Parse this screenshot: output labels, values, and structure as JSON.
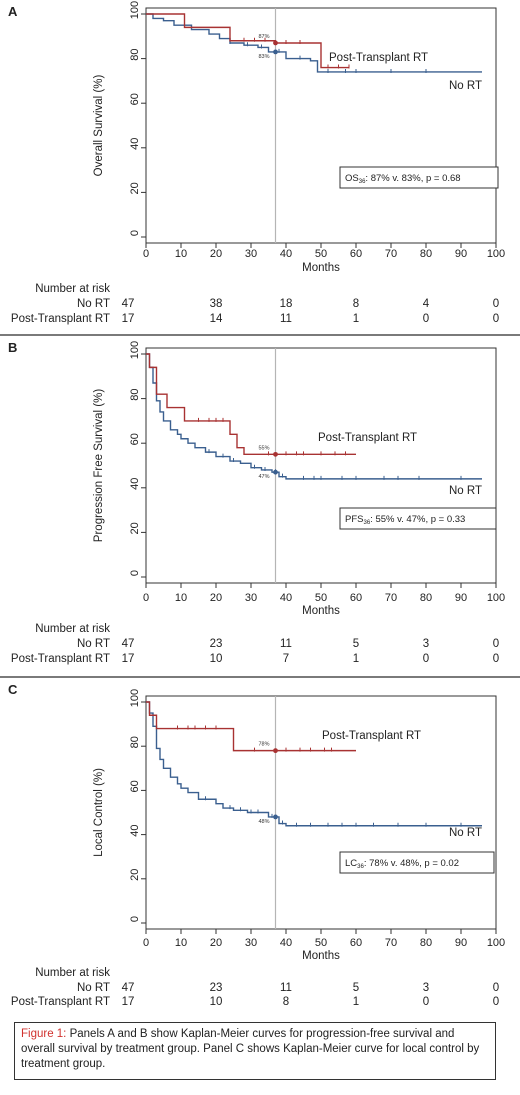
{
  "chart_data": [
    {
      "type": "line",
      "panel_label": "A",
      "ylabel": "Overall Survival (%)",
      "xlabel": "Months",
      "xlim": [
        0,
        100
      ],
      "ylim": [
        0,
        100
      ],
      "xticks": [
        0,
        10,
        20,
        30,
        40,
        50,
        60,
        70,
        80,
        90,
        100
      ],
      "yticks": [
        0,
        20,
        40,
        60,
        80,
        100
      ],
      "reference_line_x": 37,
      "annotation": "OS36: 87% v. 83%, p = 0.68",
      "annotation_parts": {
        "prefix": "OS",
        "sub": "36",
        "rest": ": 87% v. 83%, p = 0.68"
      },
      "series": [
        {
          "name": "No RT",
          "color": "#3a5f8f",
          "steps": [
            [
              0,
              100
            ],
            [
              2,
              98
            ],
            [
              5,
              97
            ],
            [
              8,
              95
            ],
            [
              13,
              93
            ],
            [
              18,
              91
            ],
            [
              21,
              89
            ],
            [
              24,
              87
            ],
            [
              28,
              86
            ],
            [
              32,
              85
            ],
            [
              35,
              83
            ],
            [
              37,
              83
            ],
            [
              40,
              80
            ],
            [
              47,
              79
            ],
            [
              49,
              74
            ],
            [
              96,
              74
            ]
          ],
          "censor": [
            24,
            29,
            33,
            38,
            44,
            52,
            57,
            60,
            70,
            80
          ],
          "marker_x": 37,
          "marker_label": "83%"
        },
        {
          "name": "Post-Transplant RT",
          "color": "#a83232",
          "steps": [
            [
              0,
              100
            ],
            [
              10,
              100
            ],
            [
              11,
              94
            ],
            [
              23,
              94
            ],
            [
              24,
              88
            ],
            [
              37,
              87
            ],
            [
              49,
              87
            ],
            [
              50,
              76
            ],
            [
              58,
              76
            ]
          ],
          "censor": [
            28,
            31,
            34,
            40,
            44,
            52,
            55,
            58
          ],
          "marker_x": 37,
          "marker_label": "87%"
        }
      ],
      "risk_table": {
        "title": "Number at risk",
        "times": [
          0,
          20,
          40,
          60,
          80,
          100
        ],
        "rows": [
          {
            "label": "No RT",
            "counts": [
              "47",
              "38",
              "18",
              "8",
              "4",
              "0"
            ]
          },
          {
            "label": "Post-Transplant RT",
            "counts": [
              "17",
              "14",
              "11",
              "1",
              "0",
              "0"
            ]
          }
        ]
      }
    },
    {
      "type": "line",
      "panel_label": "B",
      "ylabel": "Progression Free Survival (%)",
      "xlabel": "Months",
      "xlim": [
        0,
        100
      ],
      "ylim": [
        0,
        100
      ],
      "xticks": [
        0,
        10,
        20,
        30,
        40,
        50,
        60,
        70,
        80,
        90,
        100
      ],
      "yticks": [
        0,
        20,
        40,
        60,
        80,
        100
      ],
      "reference_line_x": 37,
      "annotation": "PFS36: 55% v. 47%, p = 0.33",
      "annotation_parts": {
        "prefix": "PFS",
        "sub": "36",
        "rest": ": 55% v. 47%, p = 0.33"
      },
      "series": [
        {
          "name": "No RT",
          "color": "#3a5f8f",
          "steps": [
            [
              0,
              100
            ],
            [
              1,
              94
            ],
            [
              2,
              87
            ],
            [
              3,
              79
            ],
            [
              4,
              74
            ],
            [
              5,
              70
            ],
            [
              7,
              66
            ],
            [
              9,
              64
            ],
            [
              10,
              62
            ],
            [
              12,
              60
            ],
            [
              14,
              58
            ],
            [
              17,
              56
            ],
            [
              20,
              54
            ],
            [
              24,
              52
            ],
            [
              27,
              51
            ],
            [
              30,
              49
            ],
            [
              33,
              48
            ],
            [
              36,
              47
            ],
            [
              38,
              45
            ],
            [
              40,
              44
            ],
            [
              96,
              44
            ]
          ],
          "censor": [
            18,
            22,
            25,
            31,
            34,
            37,
            39,
            45,
            48,
            50,
            56,
            60,
            68,
            72,
            78,
            90
          ],
          "marker_x": 37,
          "marker_label": "47%"
        },
        {
          "name": "Post-Transplant RT",
          "color": "#a83232",
          "steps": [
            [
              0,
              100
            ],
            [
              1,
              94
            ],
            [
              3,
              82
            ],
            [
              6,
              76
            ],
            [
              11,
              70
            ],
            [
              24,
              64
            ],
            [
              26,
              58
            ],
            [
              28,
              55
            ],
            [
              60,
              55
            ]
          ],
          "censor": [
            15,
            18,
            20,
            22,
            35,
            40,
            43,
            45,
            50,
            54,
            57
          ],
          "marker_x": 37,
          "marker_label": "55%"
        }
      ],
      "risk_table": {
        "title": "Number at risk",
        "times": [
          0,
          20,
          40,
          60,
          80,
          100
        ],
        "rows": [
          {
            "label": "No RT",
            "counts": [
              "47",
              "23",
              "11",
              "5",
              "3",
              "0"
            ]
          },
          {
            "label": "Post-Transplant RT",
            "counts": [
              "17",
              "10",
              "7",
              "1",
              "0",
              "0"
            ]
          }
        ]
      }
    },
    {
      "type": "line",
      "panel_label": "C",
      "ylabel": "Local Control (%)",
      "xlabel": "Months",
      "xlim": [
        0,
        100
      ],
      "ylim": [
        0,
        100
      ],
      "xticks": [
        0,
        10,
        20,
        30,
        40,
        50,
        60,
        70,
        80,
        90,
        100
      ],
      "yticks": [
        0,
        20,
        40,
        60,
        80,
        100
      ],
      "reference_line_x": 37,
      "annotation": "LC36: 78% v. 48%, p = 0.02",
      "annotation_parts": {
        "prefix": "LC",
        "sub": "36",
        "rest": ": 78% v. 48%, p = 0.02"
      },
      "series": [
        {
          "name": "No RT",
          "color": "#3a5f8f",
          "steps": [
            [
              0,
              100
            ],
            [
              1,
              95
            ],
            [
              2,
              89
            ],
            [
              3,
              79
            ],
            [
              4,
              74
            ],
            [
              5,
              70
            ],
            [
              7,
              66
            ],
            [
              9,
              63
            ],
            [
              10,
              61
            ],
            [
              12,
              59
            ],
            [
              15,
              56
            ],
            [
              20,
              54
            ],
            [
              22,
              52
            ],
            [
              25,
              51
            ],
            [
              29,
              50
            ],
            [
              35,
              48
            ],
            [
              38,
              45
            ],
            [
              40,
              44
            ],
            [
              96,
              44
            ]
          ],
          "censor": [
            17,
            24,
            27,
            30,
            32,
            36,
            39,
            43,
            47,
            52,
            56,
            60,
            65,
            72,
            80,
            90
          ],
          "marker_x": 37,
          "marker_label": "48%"
        },
        {
          "name": "Post-Transplant RT",
          "color": "#a83232",
          "steps": [
            [
              0,
              100
            ],
            [
              1,
              94
            ],
            [
              3,
              88
            ],
            [
              24,
              88
            ],
            [
              25,
              78
            ],
            [
              60,
              78
            ]
          ],
          "censor": [
            9,
            12,
            14,
            17,
            20,
            31,
            40,
            44,
            47,
            51,
            53
          ],
          "marker_x": 37,
          "marker_label": "78%"
        }
      ],
      "risk_table": {
        "title": "Number at risk",
        "times": [
          0,
          20,
          40,
          60,
          80,
          100
        ],
        "rows": [
          {
            "label": "No RT",
            "counts": [
              "47",
              "23",
              "11",
              "5",
              "3",
              "0"
            ]
          },
          {
            "label": "Post-Transplant RT",
            "counts": [
              "17",
              "10",
              "8",
              "1",
              "0",
              "0"
            ]
          }
        ]
      }
    }
  ],
  "caption": {
    "figure_label": "Figure 1:",
    "text": " Panels A and B show Kaplan-Meier curves for progression-free survival and overall survival by treatment group. Panel C shows Kaplan-Meier curve for local control by treatment group."
  }
}
